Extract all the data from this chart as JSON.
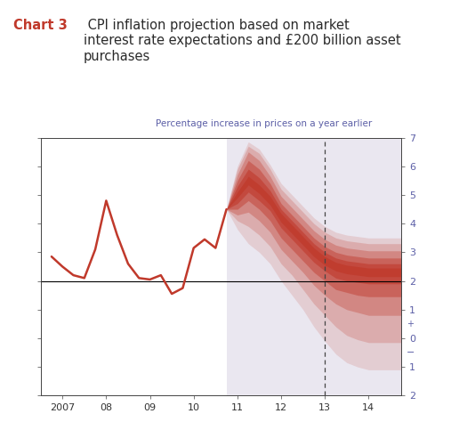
{
  "title_prefix": "Chart 3",
  "title_rest": "  CPI inflation projection based on market\ninterest rate expectations and £200 billion asset\npurchases",
  "subtitle": "Percentage increase in prices on a year earlier",
  "bg_color": "#ffffff",
  "forecast_bg_color": "#eae7f0",
  "top_bar_color": "#7b1c2e",
  "title_color": "#c0392b",
  "subtitle_color": "#5b5ea6",
  "axis_label_color": "#5b5ea6",
  "ylim": [
    -2,
    7
  ],
  "xlim_start": 2006.5,
  "xlim_end": 2014.75,
  "forecast_start": 2010.75,
  "dashed_line_x": 2013.0,
  "target_line_y": 2.0,
  "historical_x": [
    2006.75,
    2007.0,
    2007.25,
    2007.5,
    2007.75,
    2008.0,
    2008.25,
    2008.5,
    2008.75,
    2009.0,
    2009.25,
    2009.5,
    2009.75,
    2010.0,
    2010.25,
    2010.5,
    2010.75
  ],
  "historical_y": [
    2.85,
    2.5,
    2.2,
    2.1,
    3.1,
    4.8,
    3.6,
    2.6,
    2.1,
    2.05,
    2.2,
    1.55,
    1.75,
    3.15,
    3.45,
    3.15,
    4.5
  ],
  "fan_color": "#c0392b",
  "line_color": "#c0392b",
  "xticks": [
    2007,
    2008,
    2009,
    2010,
    2011,
    2012,
    2013,
    2014
  ],
  "xtick_labels": [
    "2007",
    "08",
    "09",
    "10",
    "11",
    "12",
    "13",
    "14"
  ],
  "ytick_positions": [
    -2,
    -1,
    0,
    1,
    2,
    3,
    4,
    5,
    6,
    7
  ]
}
